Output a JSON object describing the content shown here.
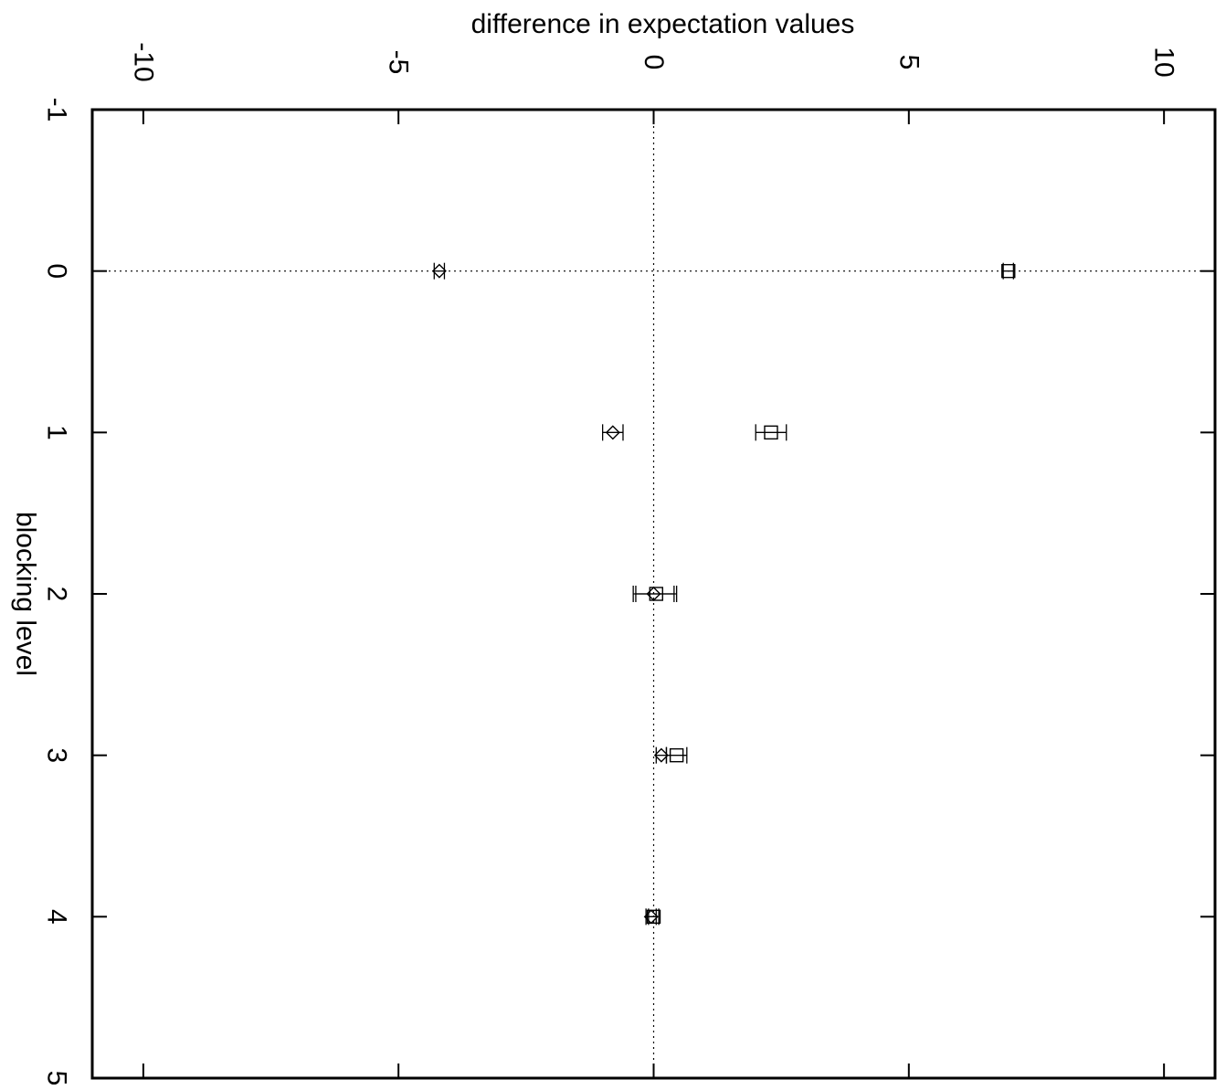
{
  "chart_data": {
    "type": "scatter",
    "orientation": "rotated 90 degrees clockwise (value axis along the top, category axis down the left side)",
    "xlabel": "blocking level",
    "ylabel": "difference in expectation values",
    "xlim": [
      -1,
      5
    ],
    "ylim": [
      -11,
      11
    ],
    "x_ticks": [
      "-1",
      "0",
      "1",
      "2",
      "3",
      "4",
      "5"
    ],
    "y_ticks": [
      "-10",
      "-5",
      "0",
      "5",
      "10"
    ],
    "reference_lines": {
      "x": 0,
      "y": 0,
      "style": "dotted"
    },
    "series": [
      {
        "marker": "diamond",
        "points": [
          {
            "x": 0,
            "y": -4.2,
            "err": 0.1
          },
          {
            "x": 1,
            "y": -0.8,
            "err": 0.2
          },
          {
            "x": 2,
            "y": 0.0,
            "err": 0.4
          },
          {
            "x": 3,
            "y": 0.15,
            "err": 0.1
          },
          {
            "x": 4,
            "y": -0.05,
            "err": 0.1
          }
        ]
      },
      {
        "marker": "square",
        "points": [
          {
            "x": 0,
            "y": 6.95,
            "err": 0.1
          },
          {
            "x": 1,
            "y": 2.3,
            "err": 0.3
          },
          {
            "x": 2,
            "y": 0.05,
            "err": 0.4
          },
          {
            "x": 3,
            "y": 0.45,
            "err": 0.2
          },
          {
            "x": 4,
            "y": 0.0,
            "err": 0.1
          }
        ]
      }
    ],
    "grid": false,
    "legend": "none"
  }
}
